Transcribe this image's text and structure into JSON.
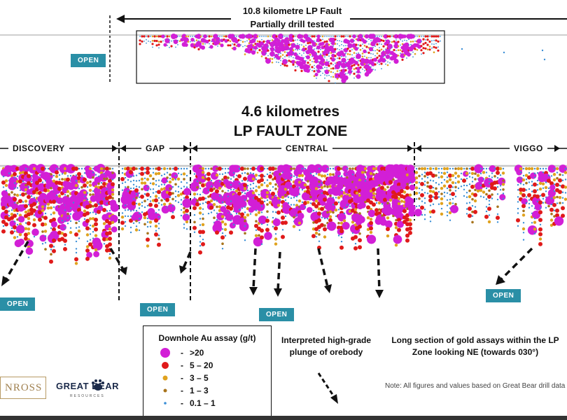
{
  "top_section": {
    "title_line1": "10.8 kilometre LP Fault",
    "title_line2": "Partially drill tested",
    "open_label": "OPEN"
  },
  "main_section": {
    "title_line1": "4.6 kilometres",
    "title_line2": "LP FAULT ZONE",
    "zones": [
      "DISCOVERY",
      "GAP",
      "CENTRAL",
      "VIGGO"
    ],
    "open_labels": [
      "OPEN",
      "OPEN",
      "OPEN",
      "OPEN"
    ]
  },
  "legend": {
    "title": "Downhole Au assay (g/t)",
    "items": [
      {
        "label": ">20",
        "color": "#d21fd6"
      },
      {
        "label": "5 – 20",
        "color": "#e01a1a"
      },
      {
        "label": "3 – 5",
        "color": "#e0a21e"
      },
      {
        "label": "1 – 3",
        "color": "#a8741c"
      },
      {
        "label": "0.1 – 1",
        "color": "#3b8fd6"
      }
    ]
  },
  "plunge_note": "Interpreted high-grade plunge of orebody",
  "caption": "Long section of gold assays within the LP Zone looking NE (towards 030°)",
  "note": "Note: All figures and values based on Great Bear drill data",
  "logos": {
    "kinross_text": "NROSS",
    "great_bear_text": "GREAT BEAR",
    "great_bear_sub": "RESOURCES"
  }
}
